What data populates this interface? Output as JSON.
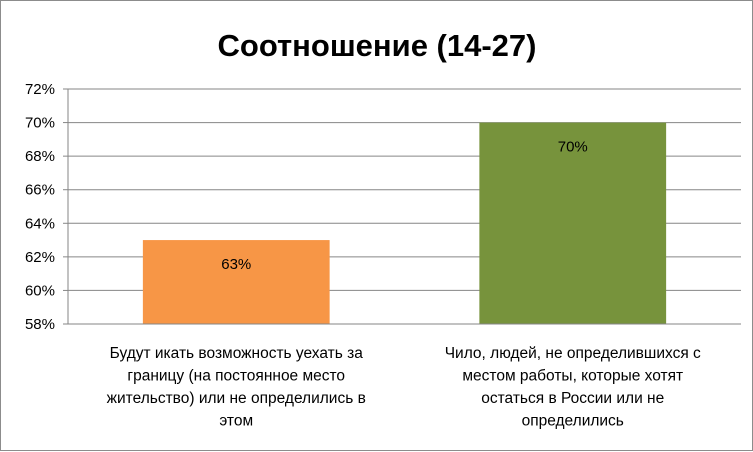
{
  "chart_data": {
    "type": "bar",
    "title": "Соотношение (14-27)",
    "categories": [
      [
        "Будут икать возможность уехать за",
        "границу  (на постоянное место",
        "жительство) или не определились в",
        "этом"
      ],
      [
        "Чило, людей, не определившихся с",
        "местом работы, которые хотят",
        "остаться в России или не",
        "определились"
      ]
    ],
    "values": [
      63,
      70
    ],
    "value_labels": [
      "63%",
      "70%"
    ],
    "bar_colors": [
      "#F79646",
      "#77933C"
    ],
    "ylim": [
      58,
      72
    ],
    "yticks": [
      58,
      60,
      62,
      64,
      66,
      68,
      70,
      72
    ],
    "ytick_labels": [
      "58%",
      "60%",
      "62%",
      "64%",
      "66%",
      "68%",
      "70%",
      "72%"
    ],
    "xlabel": "",
    "ylabel": "",
    "grid": true,
    "legend": "none"
  }
}
